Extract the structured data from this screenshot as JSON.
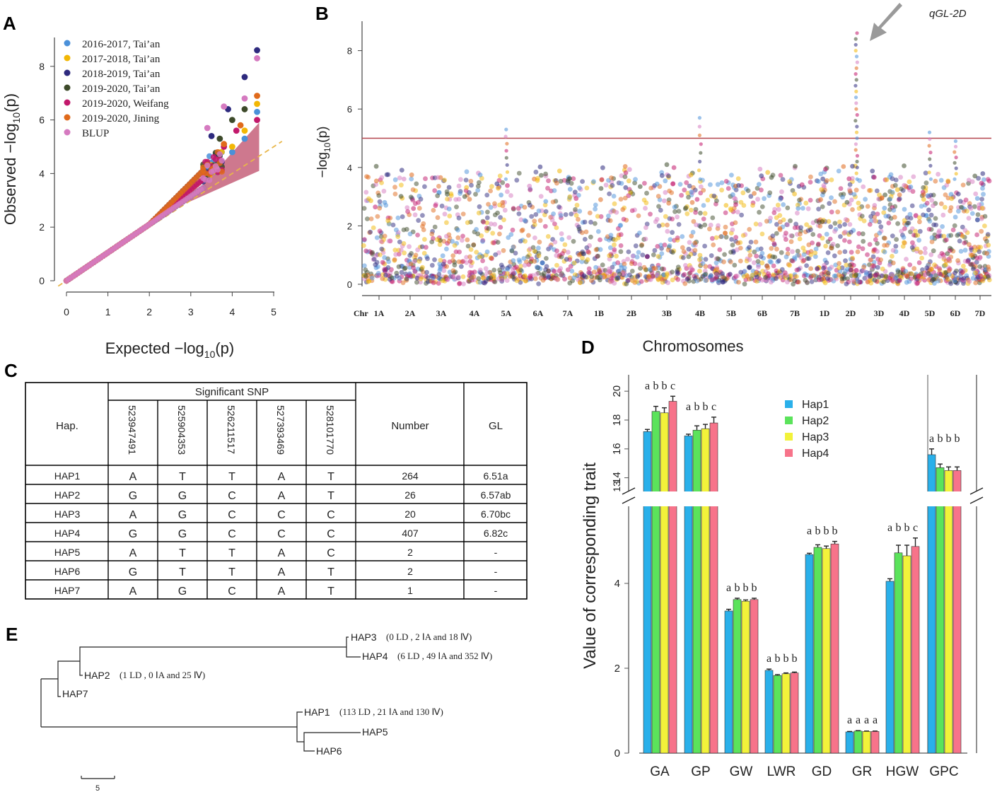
{
  "panels": {
    "a": "A",
    "b": "B",
    "c": "C",
    "d": "D",
    "e": "E"
  },
  "chart_data": [
    {
      "id": "A",
      "type": "scatter",
      "title": "",
      "xlabel": "Expected  −log10(p)",
      "ylabel": "Observed  −log10(p)",
      "xlabel_main": "Expected  −log",
      "xlabel_sub": "10",
      "xlabel_tail": "(p)",
      "ylabel_main": "Observed  −log",
      "ylabel_sub": "10",
      "ylabel_tail": "(p)",
      "xlim": [
        0,
        5
      ],
      "ylim": [
        0,
        8.7
      ],
      "xticks": [
        "0",
        "1",
        "2",
        "3",
        "4",
        "5"
      ],
      "yticks": [
        "0",
        "2",
        "4",
        "6",
        "8"
      ],
      "legend_position": "top-left",
      "series": [
        {
          "name": "2016-2017, Tai’an",
          "color": "#4a90d9",
          "top_points": [
            [
              4.0,
              4.8
            ],
            [
              4.3,
              5.3
            ],
            [
              4.6,
              6.3
            ]
          ]
        },
        {
          "name": "2017-2018, Tai’an",
          "color": "#f2b705",
          "top_points": [
            [
              4.0,
              5.0
            ],
            [
              4.3,
              5.6
            ],
            [
              4.6,
              6.6
            ]
          ]
        },
        {
          "name": "2018-2019, Tai’an",
          "color": "#2e2a7e",
          "top_points": [
            [
              3.5,
              5.4
            ],
            [
              3.9,
              6.4
            ],
            [
              4.3,
              7.6
            ],
            [
              4.6,
              8.6
            ]
          ]
        },
        {
          "name": "2019-2020, Tai’an",
          "color": "#3d4a2a",
          "top_points": [
            [
              3.7,
              5.3
            ],
            [
              4.0,
              6.0
            ],
            [
              4.3,
              6.4
            ]
          ]
        },
        {
          "name": "2019-2020, Weifang",
          "color": "#c2186b",
          "top_points": [
            [
              3.8,
              5.0
            ],
            [
              4.1,
              5.6
            ],
            [
              4.6,
              6.0
            ]
          ]
        },
        {
          "name": "2019-2020, Jining",
          "color": "#e06a1b",
          "top_points": [
            [
              3.8,
              5.1
            ],
            [
              4.2,
              5.8
            ],
            [
              4.6,
              6.9
            ]
          ]
        },
        {
          "name": "BLUP",
          "color": "#d57ac0",
          "top_points": [
            [
              3.4,
              5.7
            ],
            [
              3.8,
              6.5
            ],
            [
              4.3,
              6.8
            ],
            [
              4.6,
              8.3
            ]
          ]
        }
      ]
    },
    {
      "id": "B",
      "type": "scatter",
      "title": "",
      "xlabel": "Chr",
      "ylabel": "−log10(p)",
      "ylabel_main": "−log",
      "ylabel_sub": "10",
      "ylabel_tail": "(p)",
      "ylim": [
        0,
        9
      ],
      "yticks": [
        "0",
        "2",
        "4",
        "6",
        "8"
      ],
      "threshold": 5,
      "chromosomes": [
        "1A",
        "2A",
        "3A",
        "4A",
        "5A",
        "6A",
        "7A",
        "1B",
        "2B",
        "3B",
        "4B",
        "5B",
        "6B",
        "7B",
        "1D",
        "2D",
        "3D",
        "4D",
        "5D",
        "6D",
        "7D"
      ],
      "peak_label": "qGL-2D",
      "peaks": [
        {
          "chr": "5A",
          "value": 5.3
        },
        {
          "chr": "4B",
          "value": 5.7
        },
        {
          "chr": "2D",
          "value": 8.6
        },
        {
          "chr": "5D",
          "value": 5.2
        },
        {
          "chr": "6D",
          "value": 4.9
        }
      ],
      "palette": [
        "#4a90d9",
        "#f2b705",
        "#2e2a7e",
        "#3d4a2a",
        "#c2186b",
        "#e06a1b",
        "#d57ac0"
      ]
    },
    {
      "id": "D",
      "type": "bar",
      "title": "Chromosomes",
      "ylabel": "Value of corresponding trait",
      "categories": [
        "GA",
        "GP",
        "GW",
        "LWR",
        "GD",
        "GR",
        "HGW",
        "GPC"
      ],
      "series": [
        {
          "name": "Hap1",
          "color": "#2ab0ea",
          "values": [
            17.2,
            16.9,
            3.35,
            1.95,
            4.68,
            0.5,
            4.05,
            15.6
          ]
        },
        {
          "name": "Hap2",
          "color": "#5be35b",
          "values": [
            18.6,
            17.3,
            3.62,
            1.83,
            4.85,
            0.52,
            4.72,
            14.7
          ]
        },
        {
          "name": "Hap3",
          "color": "#f2f23a",
          "values": [
            18.5,
            17.4,
            3.58,
            1.87,
            4.82,
            0.51,
            4.65,
            14.5
          ]
        },
        {
          "name": "Hap4",
          "color": "#f7738a",
          "values": [
            19.3,
            17.8,
            3.62,
            1.89,
            4.93,
            0.51,
            4.87,
            14.5
          ]
        }
      ],
      "errors": [
        [
          0.15,
          0.12,
          0.04,
          0.03,
          0.03,
          0.01,
          0.06,
          0.4
        ],
        [
          0.35,
          0.3,
          0.03,
          0.02,
          0.06,
          0.01,
          0.18,
          0.25
        ],
        [
          0.35,
          0.3,
          0.03,
          0.02,
          0.06,
          0.01,
          0.25,
          0.25
        ],
        [
          0.35,
          0.4,
          0.03,
          0.02,
          0.06,
          0.01,
          0.2,
          0.25
        ]
      ],
      "significance": [
        [
          "a",
          "b",
          "b",
          "c"
        ],
        [
          "a",
          "b",
          "b",
          "c"
        ],
        [
          "a",
          "b",
          "b",
          "b"
        ],
        [
          "a",
          "b",
          "b",
          "b"
        ],
        [
          "a",
          "b",
          "b",
          "b"
        ],
        [
          "a",
          "a",
          "a",
          "a"
        ],
        [
          "a",
          "b",
          "b",
          "c"
        ],
        [
          "a",
          "b",
          "b",
          "b"
        ]
      ],
      "lower_axis": {
        "ylim": [
          0,
          5.8
        ],
        "ticks": [
          "0",
          "2",
          "4"
        ]
      },
      "upper_axis": {
        "ylim": [
          13,
          20.5
        ],
        "ticks": [
          "13",
          "14",
          "16",
          "18",
          "20"
        ]
      },
      "legend_position": "top-right"
    }
  ],
  "table": {
    "hap_header": "Hap.",
    "snp_group_header": "Significant SNP",
    "snps": [
      "523947491",
      "525904353",
      "526211517",
      "527393469",
      "528101770"
    ],
    "number_header": "Number",
    "gl_header": "GL",
    "rows": [
      {
        "hap": "HAP1",
        "alleles": [
          "A",
          "T",
          "T",
          "A",
          "T"
        ],
        "number": "264",
        "gl": "6.51a"
      },
      {
        "hap": "HAP2",
        "alleles": [
          "G",
          "G",
          "C",
          "A",
          "T"
        ],
        "number": "26",
        "gl": "6.57ab"
      },
      {
        "hap": "HAP3",
        "alleles": [
          "A",
          "G",
          "C",
          "C",
          "C"
        ],
        "number": "20",
        "gl": "6.70bc"
      },
      {
        "hap": "HAP4",
        "alleles": [
          "G",
          "G",
          "C",
          "C",
          "C"
        ],
        "number": "407",
        "gl": "6.82c"
      },
      {
        "hap": "HAP5",
        "alleles": [
          "A",
          "T",
          "T",
          "A",
          "C"
        ],
        "number": "2",
        "gl": "-"
      },
      {
        "hap": "HAP6",
        "alleles": [
          "G",
          "T",
          "T",
          "A",
          "T"
        ],
        "number": "2",
        "gl": "-"
      },
      {
        "hap": "HAP7",
        "alleles": [
          "A",
          "G",
          "C",
          "A",
          "T"
        ],
        "number": "1",
        "gl": "-"
      }
    ]
  },
  "tree": {
    "scale_label": "5",
    "leaves": [
      {
        "name": "HAP3",
        "note": "(0 LD , 2 ⅠA and 18 Ⅳ)"
      },
      {
        "name": "HAP4",
        "note": "(6 LD , 49 ⅠA and 352 Ⅳ)"
      },
      {
        "name": "HAP2",
        "note": "(1 LD , 0 ⅠA and 25 Ⅳ)"
      },
      {
        "name": "HAP7",
        "note": ""
      },
      {
        "name": "HAP1",
        "note": "(113 LD , 21 ⅠA and 130 Ⅳ)"
      },
      {
        "name": "HAP5",
        "note": ""
      },
      {
        "name": "HAP6",
        "note": ""
      }
    ]
  }
}
